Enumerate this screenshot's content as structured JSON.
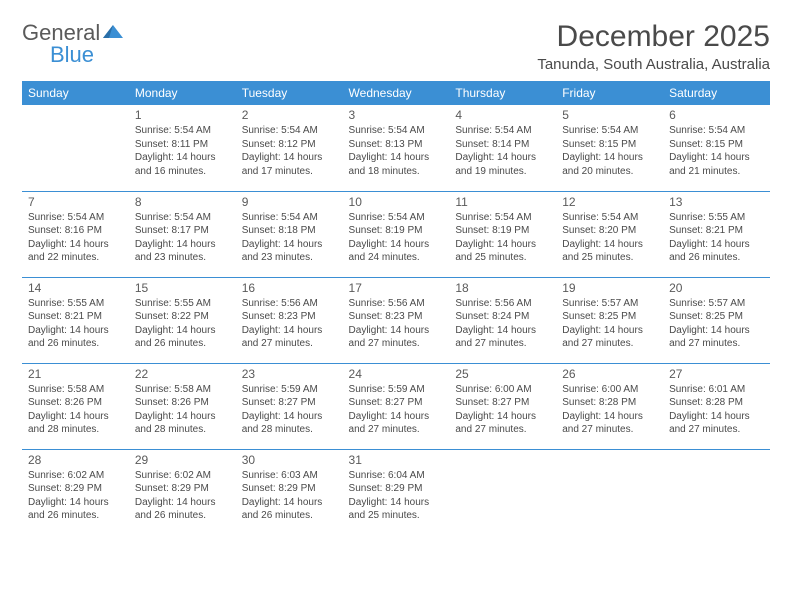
{
  "logo": {
    "text_general": "General",
    "text_blue": "Blue",
    "icon_color": "#3b8fd4"
  },
  "title": "December 2025",
  "location": "Tanunda, South Australia, Australia",
  "colors": {
    "header_bg": "#3b8fd4",
    "header_text": "#ffffff",
    "text": "#4a4a4a",
    "border": "#3b8fd4"
  },
  "day_headers": [
    "Sunday",
    "Monday",
    "Tuesday",
    "Wednesday",
    "Thursday",
    "Friday",
    "Saturday"
  ],
  "weeks": [
    [
      {
        "day": "",
        "sunrise": "",
        "sunset": "",
        "daylight": ""
      },
      {
        "day": "1",
        "sunrise": "Sunrise: 5:54 AM",
        "sunset": "Sunset: 8:11 PM",
        "daylight": "Daylight: 14 hours and 16 minutes."
      },
      {
        "day": "2",
        "sunrise": "Sunrise: 5:54 AM",
        "sunset": "Sunset: 8:12 PM",
        "daylight": "Daylight: 14 hours and 17 minutes."
      },
      {
        "day": "3",
        "sunrise": "Sunrise: 5:54 AM",
        "sunset": "Sunset: 8:13 PM",
        "daylight": "Daylight: 14 hours and 18 minutes."
      },
      {
        "day": "4",
        "sunrise": "Sunrise: 5:54 AM",
        "sunset": "Sunset: 8:14 PM",
        "daylight": "Daylight: 14 hours and 19 minutes."
      },
      {
        "day": "5",
        "sunrise": "Sunrise: 5:54 AM",
        "sunset": "Sunset: 8:15 PM",
        "daylight": "Daylight: 14 hours and 20 minutes."
      },
      {
        "day": "6",
        "sunrise": "Sunrise: 5:54 AM",
        "sunset": "Sunset: 8:15 PM",
        "daylight": "Daylight: 14 hours and 21 minutes."
      }
    ],
    [
      {
        "day": "7",
        "sunrise": "Sunrise: 5:54 AM",
        "sunset": "Sunset: 8:16 PM",
        "daylight": "Daylight: 14 hours and 22 minutes."
      },
      {
        "day": "8",
        "sunrise": "Sunrise: 5:54 AM",
        "sunset": "Sunset: 8:17 PM",
        "daylight": "Daylight: 14 hours and 23 minutes."
      },
      {
        "day": "9",
        "sunrise": "Sunrise: 5:54 AM",
        "sunset": "Sunset: 8:18 PM",
        "daylight": "Daylight: 14 hours and 23 minutes."
      },
      {
        "day": "10",
        "sunrise": "Sunrise: 5:54 AM",
        "sunset": "Sunset: 8:19 PM",
        "daylight": "Daylight: 14 hours and 24 minutes."
      },
      {
        "day": "11",
        "sunrise": "Sunrise: 5:54 AM",
        "sunset": "Sunset: 8:19 PM",
        "daylight": "Daylight: 14 hours and 25 minutes."
      },
      {
        "day": "12",
        "sunrise": "Sunrise: 5:54 AM",
        "sunset": "Sunset: 8:20 PM",
        "daylight": "Daylight: 14 hours and 25 minutes."
      },
      {
        "day": "13",
        "sunrise": "Sunrise: 5:55 AM",
        "sunset": "Sunset: 8:21 PM",
        "daylight": "Daylight: 14 hours and 26 minutes."
      }
    ],
    [
      {
        "day": "14",
        "sunrise": "Sunrise: 5:55 AM",
        "sunset": "Sunset: 8:21 PM",
        "daylight": "Daylight: 14 hours and 26 minutes."
      },
      {
        "day": "15",
        "sunrise": "Sunrise: 5:55 AM",
        "sunset": "Sunset: 8:22 PM",
        "daylight": "Daylight: 14 hours and 26 minutes."
      },
      {
        "day": "16",
        "sunrise": "Sunrise: 5:56 AM",
        "sunset": "Sunset: 8:23 PM",
        "daylight": "Daylight: 14 hours and 27 minutes."
      },
      {
        "day": "17",
        "sunrise": "Sunrise: 5:56 AM",
        "sunset": "Sunset: 8:23 PM",
        "daylight": "Daylight: 14 hours and 27 minutes."
      },
      {
        "day": "18",
        "sunrise": "Sunrise: 5:56 AM",
        "sunset": "Sunset: 8:24 PM",
        "daylight": "Daylight: 14 hours and 27 minutes."
      },
      {
        "day": "19",
        "sunrise": "Sunrise: 5:57 AM",
        "sunset": "Sunset: 8:25 PM",
        "daylight": "Daylight: 14 hours and 27 minutes."
      },
      {
        "day": "20",
        "sunrise": "Sunrise: 5:57 AM",
        "sunset": "Sunset: 8:25 PM",
        "daylight": "Daylight: 14 hours and 27 minutes."
      }
    ],
    [
      {
        "day": "21",
        "sunrise": "Sunrise: 5:58 AM",
        "sunset": "Sunset: 8:26 PM",
        "daylight": "Daylight: 14 hours and 28 minutes."
      },
      {
        "day": "22",
        "sunrise": "Sunrise: 5:58 AM",
        "sunset": "Sunset: 8:26 PM",
        "daylight": "Daylight: 14 hours and 28 minutes."
      },
      {
        "day": "23",
        "sunrise": "Sunrise: 5:59 AM",
        "sunset": "Sunset: 8:27 PM",
        "daylight": "Daylight: 14 hours and 28 minutes."
      },
      {
        "day": "24",
        "sunrise": "Sunrise: 5:59 AM",
        "sunset": "Sunset: 8:27 PM",
        "daylight": "Daylight: 14 hours and 27 minutes."
      },
      {
        "day": "25",
        "sunrise": "Sunrise: 6:00 AM",
        "sunset": "Sunset: 8:27 PM",
        "daylight": "Daylight: 14 hours and 27 minutes."
      },
      {
        "day": "26",
        "sunrise": "Sunrise: 6:00 AM",
        "sunset": "Sunset: 8:28 PM",
        "daylight": "Daylight: 14 hours and 27 minutes."
      },
      {
        "day": "27",
        "sunrise": "Sunrise: 6:01 AM",
        "sunset": "Sunset: 8:28 PM",
        "daylight": "Daylight: 14 hours and 27 minutes."
      }
    ],
    [
      {
        "day": "28",
        "sunrise": "Sunrise: 6:02 AM",
        "sunset": "Sunset: 8:29 PM",
        "daylight": "Daylight: 14 hours and 26 minutes."
      },
      {
        "day": "29",
        "sunrise": "Sunrise: 6:02 AM",
        "sunset": "Sunset: 8:29 PM",
        "daylight": "Daylight: 14 hours and 26 minutes."
      },
      {
        "day": "30",
        "sunrise": "Sunrise: 6:03 AM",
        "sunset": "Sunset: 8:29 PM",
        "daylight": "Daylight: 14 hours and 26 minutes."
      },
      {
        "day": "31",
        "sunrise": "Sunrise: 6:04 AM",
        "sunset": "Sunset: 8:29 PM",
        "daylight": "Daylight: 14 hours and 25 minutes."
      },
      {
        "day": "",
        "sunrise": "",
        "sunset": "",
        "daylight": ""
      },
      {
        "day": "",
        "sunrise": "",
        "sunset": "",
        "daylight": ""
      },
      {
        "day": "",
        "sunrise": "",
        "sunset": "",
        "daylight": ""
      }
    ]
  ]
}
